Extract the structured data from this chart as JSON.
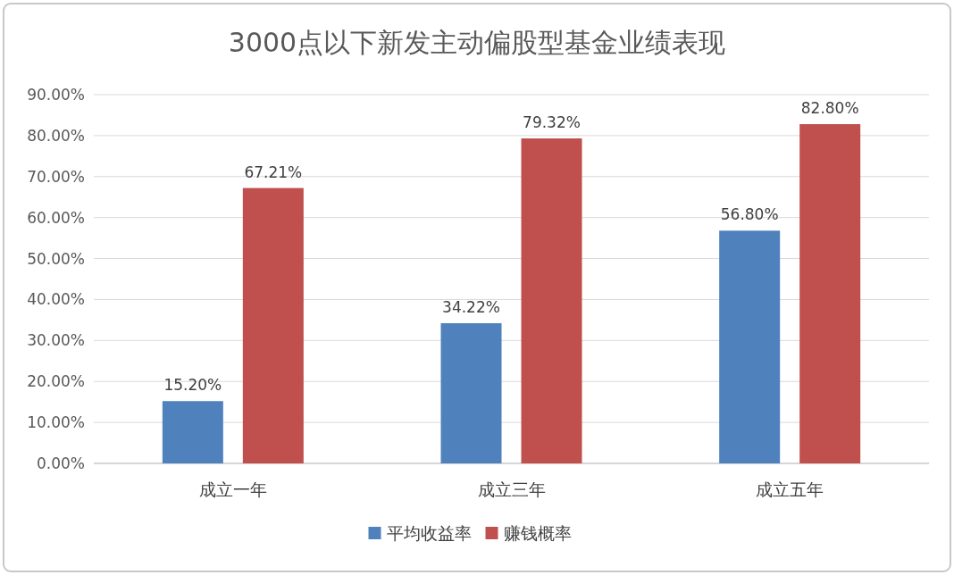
{
  "chart_data": {
    "type": "bar",
    "title": "3000点以下新发主动偏股型基金业绩表现",
    "categories": [
      "成立一年",
      "成立三年",
      "成立五年"
    ],
    "series": [
      {
        "name": "平均收益率",
        "color": "#4f81bd",
        "values": [
          15.2,
          34.22,
          56.8
        ],
        "value_labels": [
          "15.20%",
          "34.22%",
          "56.80%"
        ]
      },
      {
        "name": "赚钱概率",
        "color": "#c0504d",
        "values": [
          67.21,
          79.32,
          82.8
        ],
        "value_labels": [
          "67.21%",
          "79.32%",
          "82.80%"
        ]
      }
    ],
    "ylim": [
      0,
      90
    ],
    "yticks": [
      {
        "value": 0,
        "label": "0.00%"
      },
      {
        "value": 10,
        "label": "10.00%"
      },
      {
        "value": 20,
        "label": "20.00%"
      },
      {
        "value": 30,
        "label": "30.00%"
      },
      {
        "value": 40,
        "label": "40.00%"
      },
      {
        "value": 50,
        "label": "50.00%"
      },
      {
        "value": 60,
        "label": "60.00%"
      },
      {
        "value": 70,
        "label": "70.00%"
      },
      {
        "value": 80,
        "label": "80.00%"
      },
      {
        "value": 90,
        "label": "90.00%"
      }
    ],
    "grid": "y",
    "legend": "bottom"
  }
}
